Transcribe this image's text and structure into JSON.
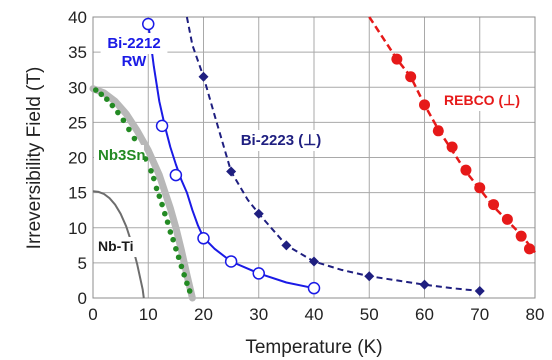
{
  "chart_data": {
    "type": "line",
    "title": "",
    "xlabel": "Temperature (K)",
    "ylabel": "Irreversibility Field (T)",
    "xlim": [
      0,
      80
    ],
    "ylim": [
      0,
      40
    ],
    "xticks": [
      "0",
      "10",
      "20",
      "30",
      "40",
      "50",
      "60",
      "70",
      "80"
    ],
    "yticks": [
      "0",
      "5",
      "10",
      "15",
      "20",
      "25",
      "30",
      "35",
      "40"
    ],
    "grid": true,
    "legend": "none",
    "series": [
      {
        "name": "Nb-Ti",
        "label_lines": [
          "Nb-Ti"
        ],
        "color": "#6d6d6d",
        "style": "solid-line",
        "points": [
          [
            0,
            15.2
          ],
          [
            1,
            15.1
          ],
          [
            2,
            14.8
          ],
          [
            3,
            14.2
          ],
          [
            4,
            13.3
          ],
          [
            5,
            12.0
          ],
          [
            6,
            10.2
          ],
          [
            7,
            7.8
          ],
          [
            8,
            4.8
          ],
          [
            9,
            1.2
          ],
          [
            9.2,
            0
          ]
        ]
      },
      {
        "name": "Nb3Sn",
        "label_lines": [
          "Nb3Sn"
        ],
        "color": "#238a23",
        "band_color": "#b8b8b8",
        "style": "dotted-markers-over-grey-band",
        "band": [
          [
            0,
            29.8
          ],
          [
            2,
            29.2
          ],
          [
            4,
            28.0
          ],
          [
            6,
            26.2
          ],
          [
            8,
            23.8
          ],
          [
            10,
            21.0
          ],
          [
            12,
            17.5
          ],
          [
            14,
            12.8
          ],
          [
            15,
            10.0
          ],
          [
            16,
            6.8
          ],
          [
            17,
            3.3
          ],
          [
            18,
            0
          ]
        ],
        "points": [
          [
            0.5,
            29.6
          ],
          [
            1.5,
            29.0
          ],
          [
            2.5,
            28.3
          ],
          [
            3.5,
            27.4
          ],
          [
            4.5,
            26.4
          ],
          [
            5.5,
            25.3
          ],
          [
            6.5,
            24.0
          ],
          [
            7.5,
            22.7
          ],
          [
            8.5,
            21.3
          ],
          [
            9.5,
            19.8
          ],
          [
            10.5,
            18.1
          ],
          [
            11.0,
            17.0
          ],
          [
            11.5,
            15.6
          ],
          [
            12.0,
            14.5
          ],
          [
            12.5,
            13.3
          ],
          [
            13.0,
            12.0
          ],
          [
            13.5,
            10.8
          ],
          [
            14.0,
            9.4
          ],
          [
            14.5,
            8.3
          ],
          [
            15.0,
            7.0
          ],
          [
            15.5,
            5.8
          ],
          [
            16.0,
            4.5
          ],
          [
            16.5,
            3.3
          ],
          [
            17.0,
            2.1
          ],
          [
            17.5,
            1.0
          ]
        ]
      },
      {
        "name": "Bi-2212 RW",
        "label_lines": [
          "Bi-2212",
          "RW"
        ],
        "color": "#1a1ae6",
        "style": "solid-line-open-circles",
        "curve": [
          [
            10,
            39
          ],
          [
            11,
            33
          ],
          [
            12,
            28
          ],
          [
            13,
            24.5
          ],
          [
            14,
            21.5
          ],
          [
            15,
            19
          ],
          [
            16,
            16.8
          ],
          [
            17,
            15
          ],
          [
            18,
            12.5
          ],
          [
            19,
            10.3
          ],
          [
            20,
            8.6
          ],
          [
            22,
            7.0
          ],
          [
            25,
            5.2
          ],
          [
            30,
            3.5
          ],
          [
            35,
            2.2
          ],
          [
            40,
            1.4
          ]
        ],
        "markers": [
          [
            10,
            39
          ],
          [
            12.5,
            24.5
          ],
          [
            15,
            17.5
          ],
          [
            20,
            8.5
          ],
          [
            25,
            5.2
          ],
          [
            30,
            3.5
          ],
          [
            40,
            1.4
          ]
        ]
      },
      {
        "name": "Bi-2223 (⊥)",
        "label_lines": [
          "Bi-2223 (⊥)"
        ],
        "color": "#1f1f80",
        "style": "dashed-line-diamonds",
        "curve": [
          [
            17,
            40
          ],
          [
            18,
            36
          ],
          [
            20,
            31.5
          ],
          [
            22,
            26
          ],
          [
            25,
            18
          ],
          [
            28,
            14
          ],
          [
            30,
            12
          ],
          [
            35,
            7.5
          ],
          [
            40,
            5.2
          ],
          [
            45,
            4.0
          ],
          [
            50,
            3.1
          ],
          [
            55,
            2.5
          ],
          [
            60,
            1.9
          ],
          [
            65,
            1.4
          ],
          [
            70,
            1.0
          ]
        ],
        "markers": [
          [
            20,
            31.5
          ],
          [
            25,
            18
          ],
          [
            30,
            12
          ],
          [
            35,
            7.5
          ],
          [
            40,
            5.2
          ],
          [
            50,
            3.1
          ],
          [
            60,
            1.9
          ],
          [
            70,
            1.0
          ]
        ]
      },
      {
        "name": "REBCO (⊥)",
        "label_lines": [
          "REBCO (⊥)"
        ],
        "color": "#e61919",
        "style": "dashed-line-filled-circles",
        "curve": [
          [
            50,
            40
          ],
          [
            55,
            34
          ],
          [
            57.5,
            31.5
          ],
          [
            60,
            27.5
          ],
          [
            62.5,
            24
          ],
          [
            65,
            21
          ],
          [
            67.5,
            18
          ],
          [
            70,
            15.5
          ],
          [
            72.5,
            13
          ],
          [
            75,
            11
          ],
          [
            77.5,
            9
          ],
          [
            80,
            6.5
          ]
        ],
        "markers": [
          [
            55,
            34
          ],
          [
            57.5,
            31.5
          ],
          [
            60,
            27.5
          ],
          [
            62.5,
            23.8
          ],
          [
            65,
            21.5
          ],
          [
            67.5,
            18.2
          ],
          [
            70,
            15.7
          ],
          [
            72.5,
            13.3
          ],
          [
            75,
            11.2
          ],
          [
            77.5,
            8.8
          ],
          [
            79,
            7.0
          ]
        ]
      }
    ]
  }
}
